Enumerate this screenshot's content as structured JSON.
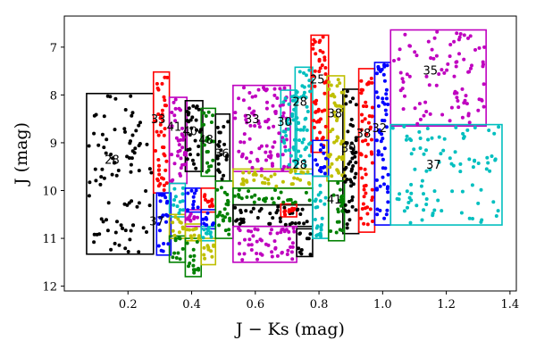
{
  "chart_data": {
    "type": "scatter",
    "title": "",
    "xlabel": "J − Ks (mag)",
    "ylabel": "J (mag)",
    "xlim": [
      0.0,
      1.42
    ],
    "ylim": [
      12.1,
      6.35
    ],
    "y_inverted": true,
    "grid": false,
    "x_ticks": [
      0.2,
      0.4,
      0.6,
      0.8,
      1.0,
      1.2,
      1.4
    ],
    "x_tick_labels": [
      "0.2",
      "0.4",
      "0.6",
      "0.8",
      "1.0",
      "1.2",
      "1.4"
    ],
    "y_ticks": [
      7,
      8,
      9,
      10,
      11,
      12
    ],
    "y_tick_labels": [
      "7",
      "8",
      "9",
      "10",
      "11",
      "12"
    ],
    "colors": {
      "black": "#000000",
      "red": "#ff0000",
      "magenta": "#bf00bf",
      "green": "#008000",
      "blue": "#0000ff",
      "cyan": "#00bfbf",
      "olive": "#bfbf00"
    },
    "boxes": [
      {
        "id": "b1",
        "color": "black",
        "x0": 0.07,
        "x1": 0.28,
        "y0": 7.97,
        "y1": 11.33
      },
      {
        "id": "b2",
        "color": "red",
        "x0": 0.28,
        "x1": 0.33,
        "y0": 7.52,
        "y1": 10.05
      },
      {
        "id": "b3",
        "color": "magenta",
        "x0": 0.33,
        "x1": 0.385,
        "y0": 8.05,
        "y1": 9.85
      },
      {
        "id": "b4",
        "color": "black",
        "x0": 0.38,
        "x1": 0.435,
        "y0": 8.12,
        "y1": 9.6
      },
      {
        "id": "b5",
        "color": "green",
        "x0": 0.43,
        "x1": 0.475,
        "y0": 8.28,
        "y1": 9.7
      },
      {
        "id": "b6",
        "color": "magenta",
        "x0": 0.53,
        "x1": 0.71,
        "y0": 7.8,
        "y1": 9.6
      },
      {
        "id": "b7",
        "color": "cyan",
        "x0": 0.68,
        "x1": 0.73,
        "y0": 7.9,
        "y1": 9.55
      },
      {
        "id": "b8",
        "color": "cyan",
        "x0": 0.725,
        "x1": 0.78,
        "y0": 7.42,
        "y1": 9.65
      },
      {
        "id": "b9",
        "color": "red",
        "x0": 0.775,
        "x1": 0.83,
        "y0": 6.75,
        "y1": 9.2
      },
      {
        "id": "b10",
        "color": "olive",
        "x0": 0.825,
        "x1": 0.88,
        "y0": 7.6,
        "y1": 9.8
      },
      {
        "id": "b11",
        "color": "black",
        "x0": 0.875,
        "x1": 0.925,
        "y0": 7.88,
        "y1": 10.9
      },
      {
        "id": "b12",
        "color": "red",
        "x0": 0.925,
        "x1": 0.975,
        "y0": 7.45,
        "y1": 10.87
      },
      {
        "id": "b13",
        "color": "blue",
        "x0": 0.975,
        "x1": 1.025,
        "y0": 7.32,
        "y1": 10.72
      },
      {
        "id": "b14",
        "color": "magenta",
        "x0": 1.025,
        "x1": 1.325,
        "y0": 6.64,
        "y1": 8.65
      },
      {
        "id": "b15",
        "color": "cyan",
        "x0": 1.025,
        "x1": 1.375,
        "y0": 8.62,
        "y1": 10.72
      },
      {
        "id": "b16",
        "color": "blue",
        "x0": 0.29,
        "x1": 0.335,
        "y0": 10.05,
        "y1": 11.35
      },
      {
        "id": "b17",
        "color": "cyan",
        "x0": 0.33,
        "x1": 0.38,
        "y0": 9.85,
        "y1": 10.55
      },
      {
        "id": "b18",
        "color": "olive",
        "x0": 0.33,
        "x1": 0.38,
        "y0": 10.5,
        "y1": 11.0
      },
      {
        "id": "b19",
        "color": "green",
        "x0": 0.33,
        "x1": 0.38,
        "y0": 10.95,
        "y1": 11.5
      },
      {
        "id": "b20",
        "color": "blue",
        "x0": 0.38,
        "x1": 0.43,
        "y0": 9.95,
        "y1": 10.45
      },
      {
        "id": "b21",
        "color": "magenta",
        "x0": 0.38,
        "x1": 0.43,
        "y0": 10.4,
        "y1": 10.75
      },
      {
        "id": "b22",
        "color": "olive",
        "x0": 0.38,
        "x1": 0.43,
        "y0": 10.7,
        "y1": 11.05
      },
      {
        "id": "b23",
        "color": "green",
        "x0": 0.38,
        "x1": 0.43,
        "y0": 11.0,
        "y1": 11.8
      },
      {
        "id": "b24",
        "color": "red",
        "x0": 0.43,
        "x1": 0.475,
        "y0": 9.95,
        "y1": 10.45
      },
      {
        "id": "b25",
        "color": "blue",
        "x0": 0.43,
        "x1": 0.475,
        "y0": 10.4,
        "y1": 10.8
      },
      {
        "id": "b26",
        "color": "cyan",
        "x0": 0.43,
        "x1": 0.475,
        "y0": 10.75,
        "y1": 11.05
      },
      {
        "id": "b27",
        "color": "olive",
        "x0": 0.43,
        "x1": 0.475,
        "y0": 11.0,
        "y1": 11.55
      },
      {
        "id": "b28",
        "color": "black",
        "x0": 0.475,
        "x1": 0.52,
        "y0": 8.4,
        "y1": 9.8
      },
      {
        "id": "b29",
        "color": "green",
        "x0": 0.475,
        "x1": 0.53,
        "y0": 9.8,
        "y1": 11.0
      },
      {
        "id": "b30",
        "color": "olive",
        "x0": 0.53,
        "x1": 0.78,
        "y0": 9.55,
        "y1": 9.95
      },
      {
        "id": "b31",
        "color": "green",
        "x0": 0.53,
        "x1": 0.78,
        "y0": 9.95,
        "y1": 10.3
      },
      {
        "id": "b32",
        "color": "black",
        "x0": 0.53,
        "x1": 0.78,
        "y0": 10.3,
        "y1": 10.75
      },
      {
        "id": "b33",
        "color": "red",
        "x0": 0.68,
        "x1": 0.73,
        "y0": 10.28,
        "y1": 10.55
      },
      {
        "id": "b34",
        "color": "magenta",
        "x0": 0.53,
        "x1": 0.73,
        "y0": 10.75,
        "y1": 11.5
      },
      {
        "id": "b35",
        "color": "black",
        "x0": 0.73,
        "x1": 0.78,
        "y0": 10.8,
        "y1": 11.38
      },
      {
        "id": "b36",
        "color": "blue",
        "x0": 0.78,
        "x1": 0.83,
        "y0": 8.95,
        "y1": 9.7
      },
      {
        "id": "b37",
        "color": "cyan",
        "x0": 0.78,
        "x1": 0.83,
        "y0": 9.7,
        "y1": 11.0
      },
      {
        "id": "b38",
        "color": "green",
        "x0": 0.83,
        "x1": 0.88,
        "y0": 9.8,
        "y1": 11.05
      }
    ],
    "annotations": [
      {
        "text": "28",
        "x": 0.15,
        "y": 9.35
      },
      {
        "text": "33",
        "x": 0.295,
        "y": 8.5
      },
      {
        "text": "41",
        "x": 0.345,
        "y": 8.66
      },
      {
        "text": "40",
        "x": 0.395,
        "y": 8.75
      },
      {
        "text": "48",
        "x": 0.445,
        "y": 8.93
      },
      {
        "text": "36",
        "x": 0.495,
        "y": 9.22
      },
      {
        "text": "33",
        "x": 0.59,
        "y": 8.5
      },
      {
        "text": "30",
        "x": 0.692,
        "y": 8.55
      },
      {
        "text": "28",
        "x": 0.74,
        "y": 8.13
      },
      {
        "text": "25",
        "x": 0.795,
        "y": 7.67
      },
      {
        "text": "38",
        "x": 0.85,
        "y": 8.38
      },
      {
        "text": "39",
        "x": 0.893,
        "y": 9.1
      },
      {
        "text": "38",
        "x": 0.94,
        "y": 8.8
      },
      {
        "text": "32",
        "x": 0.99,
        "y": 8.68
      },
      {
        "text": "35",
        "x": 1.15,
        "y": 7.48
      },
      {
        "text": "37",
        "x": 1.16,
        "y": 9.45
      },
      {
        "text": "28",
        "x": 0.74,
        "y": 9.45
      },
      {
        "text": "41",
        "x": 0.848,
        "y": 10.18
      },
      {
        "text": "37",
        "x": 0.29,
        "y": 10.63
      }
    ]
  }
}
